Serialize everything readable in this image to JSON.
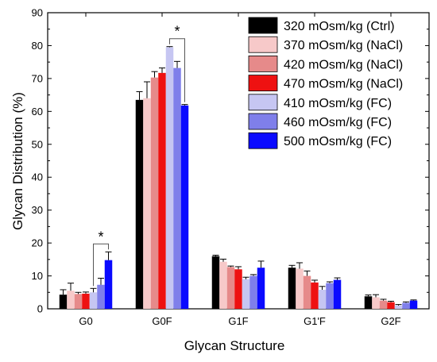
{
  "chart_data": {
    "type": "bar",
    "title": "",
    "xlabel": "Glycan Structure",
    "ylabel": "Glycan Distribution (%)",
    "ylim": [
      0,
      90
    ],
    "yticks": [
      0,
      10,
      20,
      30,
      40,
      50,
      60,
      70,
      80,
      90
    ],
    "categories": [
      "G0",
      "G0F",
      "G1F",
      "G1'F",
      "G2F"
    ],
    "legend_position": "top-right",
    "series": [
      {
        "name": "320 mOsm/kg (Ctrl)",
        "color": "#000000",
        "values": [
          4.3,
          63.5,
          16.0,
          12.5,
          3.8
        ],
        "errors": [
          1.5,
          2.5,
          0.3,
          0.7,
          0.4
        ]
      },
      {
        "name": "370 mOsm/kg (NaCl)",
        "color": "#f7c9c9",
        "values": [
          5.5,
          64.0,
          14.3,
          12.2,
          3.5
        ],
        "errors": [
          2.3,
          5.0,
          0.8,
          1.8,
          0.8
        ]
      },
      {
        "name": "420 mOsm/kg (NaCl)",
        "color": "#e68a8a",
        "values": [
          4.5,
          70.3,
          12.7,
          10.0,
          2.5
        ],
        "errors": [
          0.5,
          1.8,
          0.3,
          1.5,
          0.4
        ]
      },
      {
        "name": "470 mOsm/kg (NaCl)",
        "color": "#ee1111",
        "values": [
          4.6,
          71.7,
          12.0,
          8.0,
          2.0
        ],
        "errors": [
          0.5,
          1.5,
          0.8,
          0.7,
          0.3
        ]
      },
      {
        "name": "410 mOsm/kg (FC)",
        "color": "#c6c6f2",
        "values": [
          5.0,
          79.5,
          9.0,
          5.8,
          1.0
        ],
        "errors": [
          1.2,
          0.2,
          0.6,
          1.0,
          0.3
        ]
      },
      {
        "name": "460 mOsm/kg (FC)",
        "color": "#7f7fea",
        "values": [
          7.3,
          73.2,
          10.0,
          7.8,
          1.8
        ],
        "errors": [
          2.0,
          2.0,
          0.4,
          0.4,
          0.3
        ]
      },
      {
        "name": "500 mOsm/kg (FC)",
        "color": "#0a0aff",
        "values": [
          14.8,
          61.8,
          12.5,
          8.8,
          2.5
        ],
        "errors": [
          2.5,
          0.3,
          2.0,
          0.6,
          0.2
        ]
      }
    ],
    "annotations": [
      {
        "text": "*",
        "category": "G0",
        "from_series": 4,
        "to_series": 6
      },
      {
        "text": "*",
        "category": "G0F",
        "from_series": 4,
        "to_series": 6
      }
    ]
  }
}
